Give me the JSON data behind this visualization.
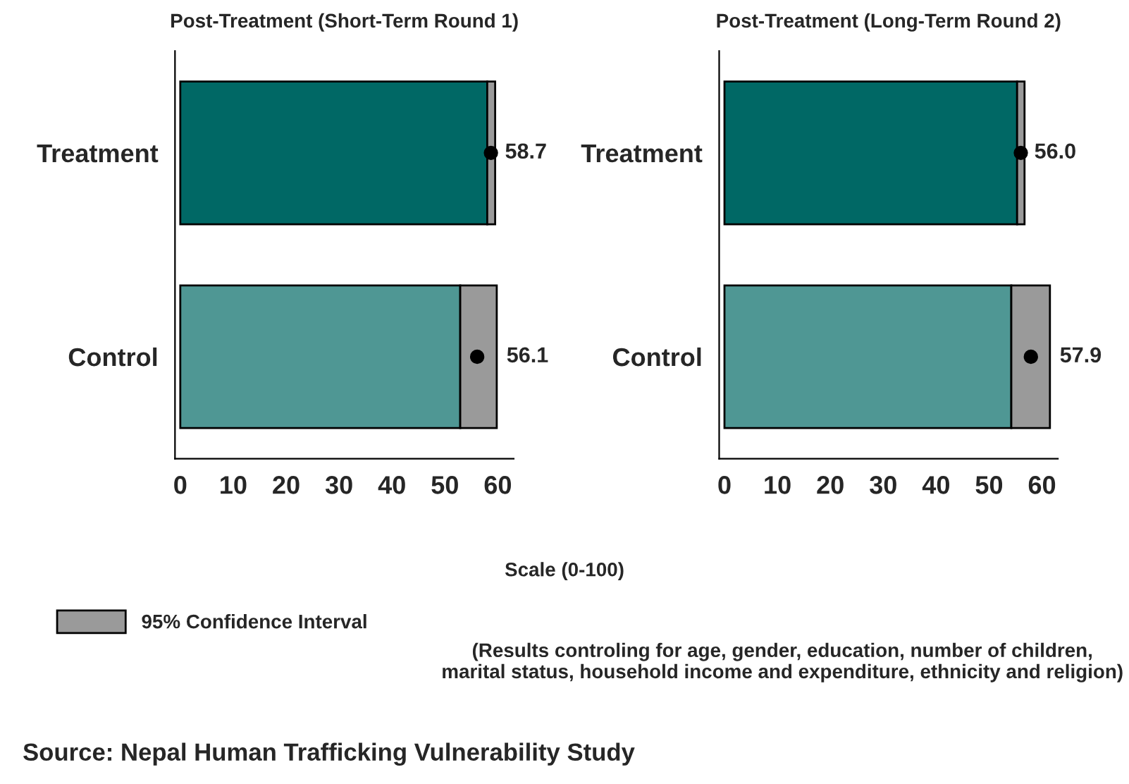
{
  "chart_data": [
    {
      "type": "bar",
      "orientation": "horizontal",
      "stacked": true,
      "title": "Post-Treatment (Short-Term Round 1)",
      "xlabel": "Scale (0-100)",
      "categories": [
        "Treatment",
        "Control"
      ],
      "xlim": [
        -1,
        63
      ],
      "xticks": [
        0,
        10,
        20,
        30,
        40,
        50,
        60
      ],
      "legend": "bottom left",
      "grid": false,
      "annotations": [
        "(Results controling for age, gender, education, number of children,\nmarital status, household income and expenditure, ethnicity and religion)",
        "Source: Nepal Human Trafficking Vulnerability Study"
      ],
      "series": [
        {
          "colors": [
            "#006865",
            "#4f9794"
          ],
          "values": [
            58.0,
            52.9
          ]
        },
        {
          "name": "95% Confidence Interval",
          "color": "#9a9a9a",
          "values": [
            1.5,
            6.9
          ]
        },
        {
          "type": "scatter",
          "color": "#000000",
          "x": [
            "Treatment",
            "Control"
          ],
          "values": [
            58.7,
            56.1
          ],
          "value_labels": [
            "58.7",
            "56.1"
          ]
        }
      ]
    },
    {
      "type": "bar",
      "orientation": "horizontal",
      "stacked": true,
      "title": "Post-Treatment (Long-Term Round 2)",
      "categories": [
        "Treatment",
        "Control"
      ],
      "xlim": [
        -1,
        63
      ],
      "xticks": [
        0,
        10,
        20,
        30,
        40,
        50,
        60
      ],
      "grid": false,
      "series": [
        {
          "colors": [
            "#006865",
            "#4f9794"
          ],
          "values": [
            55.3,
            54.2
          ]
        },
        {
          "color": "#9a9a9a",
          "values": [
            1.4,
            7.3
          ]
        },
        {
          "type": "scatter",
          "color": "#000000",
          "x": [
            "Treatment",
            "Control"
          ],
          "values": [
            56.0,
            57.9
          ],
          "value_labels": [
            "56.0",
            "57.9"
          ]
        }
      ]
    }
  ]
}
